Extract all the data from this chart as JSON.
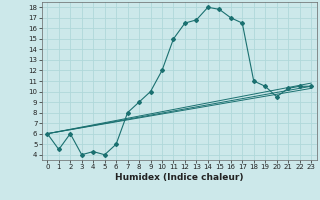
{
  "title": "",
  "xlabel": "Humidex (Indice chaleur)",
  "bg_color": "#cce8ea",
  "line_color": "#1a7070",
  "grid_color": "#b0d8da",
  "xlim": [
    -0.5,
    23.5
  ],
  "ylim": [
    3.5,
    18.5
  ],
  "xticks": [
    0,
    1,
    2,
    3,
    4,
    5,
    6,
    7,
    8,
    9,
    10,
    11,
    12,
    13,
    14,
    15,
    16,
    17,
    18,
    19,
    20,
    21,
    22,
    23
  ],
  "yticks": [
    4,
    5,
    6,
    7,
    8,
    9,
    10,
    11,
    12,
    13,
    14,
    15,
    16,
    17,
    18
  ],
  "curve1_x": [
    0,
    1,
    2,
    3,
    4,
    5,
    6,
    7,
    8,
    9,
    10,
    11,
    12,
    13,
    14,
    15,
    16,
    17,
    18,
    19,
    20,
    21,
    22,
    23
  ],
  "curve1_y": [
    6.0,
    4.5,
    6.0,
    4.0,
    4.3,
    4.0,
    5.0,
    8.0,
    9.0,
    10.0,
    12.0,
    15.0,
    16.5,
    16.8,
    18.0,
    17.8,
    17.0,
    16.5,
    11.0,
    10.5,
    9.5,
    10.3,
    10.5,
    10.5
  ],
  "curve2_x": [
    0,
    23
  ],
  "curve2_y": [
    6.0,
    10.3
  ],
  "curve3_x": [
    0,
    23
  ],
  "curve3_y": [
    6.0,
    10.5
  ],
  "curve4_x": [
    0,
    23
  ],
  "curve4_y": [
    6.0,
    10.8
  ],
  "xlabel_fontsize": 6.5,
  "tick_fontsize": 5.0
}
